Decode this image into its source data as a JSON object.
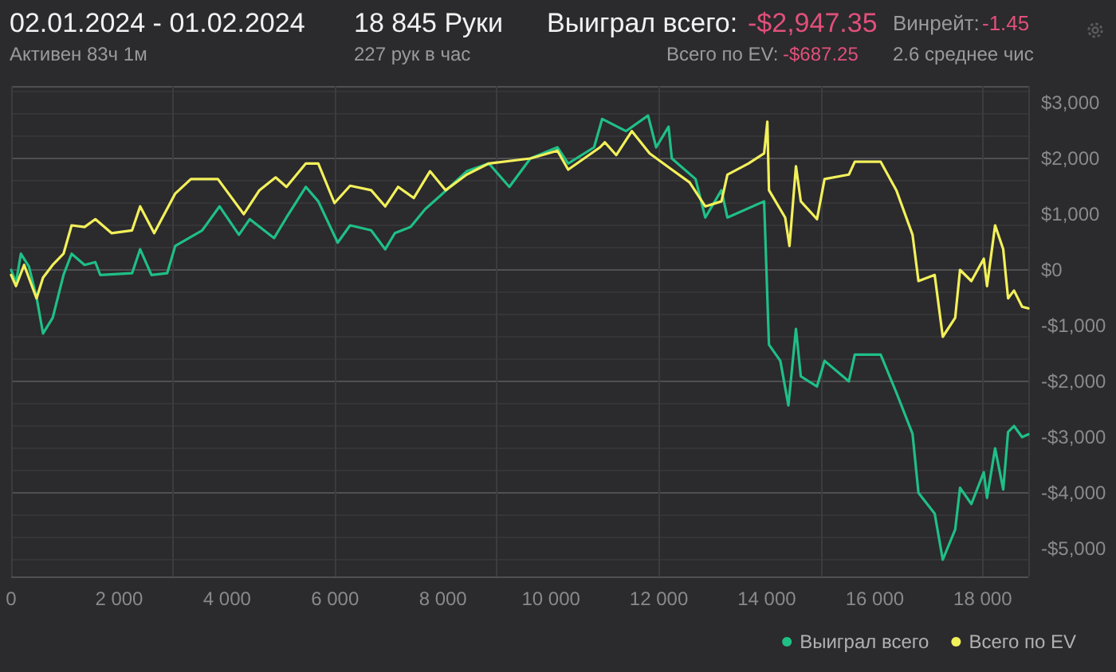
{
  "chart_data": {
    "type": "line",
    "title": "02.01.2024 - 01.02.2024",
    "subtitle": "Активен 83ч 1м",
    "annotations": [
      "18 845 Руки",
      "227 рук в час",
      "Выиграл всего:",
      "-$2,947.35",
      "Всего по EV:",
      "-$687.25",
      "Винрейт:",
      "-1.45",
      "2.6 среднее чис"
    ],
    "series": [
      {
        "name": "Выиграл всего",
        "color": "#1fbf86",
        "x": [
          0,
          90,
          180,
          330,
          470,
          590,
          770,
          970,
          1120,
          1360,
          1560,
          1650,
          2240,
          2390,
          2600,
          2890,
          3040,
          3540,
          3860,
          4220,
          4420,
          4870,
          5100,
          5460,
          5690,
          6050,
          6280,
          6670,
          6930,
          7110,
          7400,
          7670,
          7960,
          8440,
          8850,
          9230,
          9620,
          10120,
          10320,
          10800,
          10950,
          11390,
          11800,
          11950,
          12180,
          12240,
          12680,
          12860,
          13160,
          13270,
          13950,
          14040,
          14250,
          14400,
          14540,
          14630,
          14930,
          15070,
          15520,
          15630,
          16110,
          16400,
          16700,
          16810,
          17110,
          17260,
          17490,
          17580,
          17790,
          18020,
          18080,
          18230,
          18380,
          18470,
          18580,
          18730,
          18845
        ],
        "values": [
          0,
          -230,
          290,
          60,
          -490,
          -1140,
          -860,
          -90,
          290,
          90,
          140,
          -90,
          -60,
          370,
          -90,
          -60,
          430,
          710,
          1140,
          630,
          910,
          570,
          940,
          1490,
          1230,
          490,
          800,
          710,
          370,
          660,
          770,
          1090,
          1340,
          1770,
          1910,
          1490,
          2000,
          2200,
          1910,
          2200,
          2710,
          2490,
          2770,
          2200,
          2570,
          2000,
          1630,
          940,
          1430,
          940,
          1230,
          -1340,
          -1630,
          -2430,
          -1060,
          -1910,
          -2090,
          -1630,
          -2000,
          -1520,
          -1520,
          -2200,
          -2940,
          -4000,
          -4370,
          -5200,
          -4660,
          -3910,
          -4200,
          -3630,
          -4090,
          -3200,
          -3940,
          -2910,
          -2800,
          -3000,
          -2950
        ]
      },
      {
        "name": "Всего по EV",
        "color": "#f2f05a",
        "x": [
          0,
          90,
          240,
          470,
          590,
          770,
          970,
          1120,
          1360,
          1560,
          1860,
          2240,
          2390,
          2650,
          3040,
          3330,
          3830,
          4310,
          4600,
          4900,
          5100,
          5460,
          5690,
          5990,
          6280,
          6670,
          6930,
          7170,
          7460,
          7760,
          8050,
          8440,
          8850,
          9620,
          10120,
          10320,
          10910,
          11000,
          11210,
          11500,
          11830,
          12240,
          12570,
          12860,
          13160,
          13270,
          13660,
          13950,
          14010,
          14040,
          14340,
          14420,
          14540,
          14630,
          14930,
          15070,
          15520,
          15630,
          16110,
          16400,
          16700,
          16810,
          17110,
          17260,
          17490,
          17580,
          17790,
          18020,
          18080,
          18230,
          18380,
          18470,
          18580,
          18730,
          18845
        ],
        "values": [
          -90,
          -290,
          90,
          -510,
          -140,
          90,
          290,
          800,
          770,
          910,
          660,
          710,
          1140,
          660,
          1370,
          1630,
          1630,
          1000,
          1430,
          1660,
          1490,
          1910,
          1910,
          1200,
          1510,
          1430,
          1140,
          1490,
          1290,
          1770,
          1430,
          1710,
          1910,
          2000,
          2140,
          1800,
          2200,
          2290,
          2060,
          2490,
          2090,
          1800,
          1570,
          1140,
          1230,
          1710,
          1910,
          2090,
          2660,
          1430,
          940,
          430,
          1860,
          1230,
          910,
          1630,
          1710,
          1940,
          1940,
          1430,
          630,
          -200,
          -90,
          -1200,
          -860,
          0,
          -200,
          200,
          -290,
          800,
          370,
          -510,
          -370,
          -660,
          -690
        ]
      }
    ],
    "xlim": [
      0,
      18845
    ],
    "xticks": [
      0,
      {
        "value": 2000,
        "label": "2 000"
      },
      {
        "value": 4000,
        "label": "4 000"
      },
      {
        "value": 6000,
        "label": "6 000"
      },
      {
        "value": 8000,
        "label": "8 000"
      },
      {
        "value": 10000,
        "label": "10 000"
      },
      {
        "value": 12000,
        "label": "12 000"
      },
      {
        "value": 14000,
        "label": "14 000"
      },
      {
        "value": 16000,
        "label": "16 000"
      },
      {
        "value": 18000,
        "label": "18 000"
      }
    ],
    "ylim": [
      -5500,
      3300
    ],
    "yticks": [
      {
        "value": -5000,
        "label": "-$5,000"
      },
      {
        "value": -4000,
        "label": "-$4,000"
      },
      {
        "value": -3000,
        "label": "-$3,000"
      },
      {
        "value": -2000,
        "label": "-$2,000"
      },
      {
        "value": -1000,
        "label": "-$1,000"
      },
      {
        "value": 0,
        "label": "$0"
      },
      {
        "value": 1000,
        "label": "$1,000"
      },
      {
        "value": 2000,
        "label": "$2,000"
      },
      {
        "value": 3000,
        "label": "$3,000"
      }
    ],
    "grid": true,
    "legend": "bottom right",
    "marker": "none",
    "line_style": "solid"
  }
}
